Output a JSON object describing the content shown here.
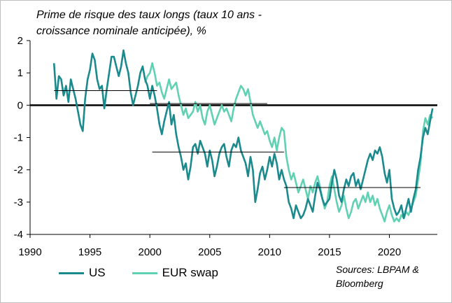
{
  "chart_data": {
    "type": "line",
    "title": "Prime de risque des taux longs (taux 10 ans - croissance nominale anticipée), %",
    "title_lines": [
      "Prime de risque des taux longs (taux 10 ans -",
      "croissance nominale anticipée), %"
    ],
    "xlabel": "",
    "ylabel": "",
    "xlim": [
      1990,
      2024
    ],
    "ylim": [
      -4,
      2
    ],
    "x_ticks": [
      1990,
      1995,
      2000,
      2005,
      2010,
      2015,
      2020
    ],
    "y_ticks": [
      2,
      1,
      0,
      -1,
      -2,
      -3,
      -4
    ],
    "grid": false,
    "legend_position": "bottom-left",
    "series": [
      {
        "name": "US",
        "color": "#1a8a8c",
        "points": [
          [
            1992.0,
            1.3
          ],
          [
            1992.2,
            0.2
          ],
          [
            1992.4,
            0.9
          ],
          [
            1992.6,
            0.8
          ],
          [
            1992.8,
            0.3
          ],
          [
            1993.0,
            0.6
          ],
          [
            1993.2,
            0.1
          ],
          [
            1993.4,
            0.8
          ],
          [
            1993.6,
            0.5
          ],
          [
            1993.8,
            0.2
          ],
          [
            1994.0,
            -0.2
          ],
          [
            1994.2,
            -0.6
          ],
          [
            1994.4,
            -0.8
          ],
          [
            1994.6,
            0.2
          ],
          [
            1994.8,
            0.8
          ],
          [
            1995.0,
            1.1
          ],
          [
            1995.2,
            1.6
          ],
          [
            1995.4,
            1.4
          ],
          [
            1995.6,
            0.8
          ],
          [
            1995.8,
            0.5
          ],
          [
            1996.0,
            0.6
          ],
          [
            1996.2,
            -0.1
          ],
          [
            1996.4,
            0.5
          ],
          [
            1996.6,
            1.0
          ],
          [
            1996.8,
            1.5
          ],
          [
            1997.0,
            1.5
          ],
          [
            1997.2,
            1.2
          ],
          [
            1997.4,
            0.9
          ],
          [
            1997.6,
            1.2
          ],
          [
            1997.8,
            1.7
          ],
          [
            1998.0,
            1.3
          ],
          [
            1998.2,
            1.0
          ],
          [
            1998.4,
            0.4
          ],
          [
            1998.6,
            0.0
          ],
          [
            1998.8,
            0.3
          ],
          [
            1999.0,
            0.6
          ],
          [
            1999.2,
            1.0
          ],
          [
            1999.4,
            1.2
          ],
          [
            1999.6,
            0.8
          ],
          [
            1999.8,
            0.6
          ],
          [
            2000.0,
            0.2
          ],
          [
            2000.2,
            0.6
          ],
          [
            2000.4,
            0.3
          ],
          [
            2000.6,
            -0.1
          ],
          [
            2000.8,
            -0.6
          ],
          [
            2001.0,
            -0.9
          ],
          [
            2001.2,
            -0.5
          ],
          [
            2001.4,
            -0.2
          ],
          [
            2001.6,
            0.1
          ],
          [
            2001.8,
            -0.6
          ],
          [
            2002.0,
            -0.3
          ],
          [
            2002.2,
            -0.9
          ],
          [
            2002.4,
            -1.3
          ],
          [
            2002.6,
            -1.6
          ],
          [
            2002.8,
            -2.0
          ],
          [
            2003.0,
            -1.8
          ],
          [
            2003.2,
            -2.3
          ],
          [
            2003.4,
            -1.9
          ],
          [
            2003.6,
            -1.3
          ],
          [
            2003.8,
            -1.2
          ],
          [
            2004.0,
            -1.5
          ],
          [
            2004.2,
            -1.1
          ],
          [
            2004.4,
            -1.3
          ],
          [
            2004.6,
            -1.5
          ],
          [
            2004.8,
            -1.9
          ],
          [
            2005.0,
            -1.4
          ],
          [
            2005.2,
            -1.7
          ],
          [
            2005.4,
            -2.2
          ],
          [
            2005.6,
            -1.9
          ],
          [
            2005.8,
            -1.5
          ],
          [
            2006.0,
            -1.3
          ],
          [
            2006.2,
            -1.2
          ],
          [
            2006.4,
            -1.6
          ],
          [
            2006.6,
            -1.9
          ],
          [
            2006.8,
            -1.4
          ],
          [
            2007.0,
            -1.2
          ],
          [
            2007.2,
            -1.3
          ],
          [
            2007.4,
            -1.0
          ],
          [
            2007.6,
            -1.4
          ],
          [
            2007.8,
            -1.6
          ],
          [
            2008.0,
            -1.8
          ],
          [
            2008.2,
            -2.2
          ],
          [
            2008.4,
            -1.6
          ],
          [
            2008.6,
            -2.0
          ],
          [
            2008.8,
            -3.0
          ],
          [
            2009.0,
            -2.6
          ],
          [
            2009.2,
            -2.1
          ],
          [
            2009.4,
            -1.9
          ],
          [
            2009.6,
            -2.3
          ],
          [
            2009.8,
            -2.0
          ],
          [
            2010.0,
            -1.6
          ],
          [
            2010.2,
            -1.9
          ],
          [
            2010.4,
            -1.5
          ],
          [
            2010.6,
            -1.8
          ],
          [
            2010.8,
            -2.3
          ],
          [
            2011.0,
            -2.0
          ],
          [
            2011.2,
            -2.3
          ],
          [
            2011.4,
            -2.5
          ],
          [
            2011.6,
            -3.0
          ],
          [
            2011.8,
            -3.2
          ],
          [
            2012.0,
            -3.5
          ],
          [
            2012.2,
            -3.1
          ],
          [
            2012.4,
            -3.3
          ],
          [
            2012.6,
            -3.5
          ],
          [
            2012.8,
            -3.4
          ],
          [
            2013.0,
            -3.2
          ],
          [
            2013.2,
            -2.9
          ],
          [
            2013.4,
            -3.1
          ],
          [
            2013.6,
            -3.3
          ],
          [
            2013.8,
            -2.8
          ],
          [
            2014.0,
            -2.4
          ],
          [
            2014.2,
            -2.6
          ],
          [
            2014.4,
            -2.9
          ],
          [
            2014.6,
            -3.1
          ],
          [
            2014.8,
            -3.0
          ],
          [
            2015.0,
            -2.9
          ],
          [
            2015.2,
            -2.4
          ],
          [
            2015.4,
            -2.0
          ],
          [
            2015.6,
            -2.3
          ],
          [
            2015.8,
            -2.8
          ],
          [
            2016.0,
            -3.0
          ],
          [
            2016.2,
            -2.6
          ],
          [
            2016.4,
            -2.3
          ],
          [
            2016.6,
            -2.5
          ],
          [
            2016.8,
            -2.2
          ],
          [
            2017.0,
            -2.1
          ],
          [
            2017.2,
            -2.5
          ],
          [
            2017.4,
            -2.3
          ],
          [
            2017.6,
            -2.6
          ],
          [
            2017.8,
            -2.3
          ],
          [
            2018.0,
            -2.0
          ],
          [
            2018.2,
            -1.7
          ],
          [
            2018.4,
            -1.5
          ],
          [
            2018.6,
            -1.7
          ],
          [
            2018.8,
            -1.4
          ],
          [
            2019.0,
            -1.5
          ],
          [
            2019.2,
            -1.3
          ],
          [
            2019.4,
            -1.6
          ],
          [
            2019.6,
            -2.1
          ],
          [
            2019.8,
            -2.4
          ],
          [
            2020.0,
            -2.0
          ],
          [
            2020.2,
            -2.9
          ],
          [
            2020.4,
            -3.2
          ],
          [
            2020.6,
            -3.4
          ],
          [
            2020.8,
            -3.3
          ],
          [
            2021.0,
            -3.1
          ],
          [
            2021.2,
            -3.5
          ],
          [
            2021.4,
            -3.2
          ],
          [
            2021.6,
            -2.9
          ],
          [
            2021.8,
            -3.3
          ],
          [
            2022.0,
            -2.9
          ],
          [
            2022.2,
            -2.6
          ],
          [
            2022.4,
            -2.0
          ],
          [
            2022.6,
            -1.6
          ],
          [
            2022.8,
            -1.0
          ],
          [
            2023.0,
            -0.7
          ],
          [
            2023.2,
            -0.9
          ],
          [
            2023.4,
            -0.5
          ],
          [
            2023.6,
            -0.1
          ]
        ]
      },
      {
        "name": "EUR swap",
        "color": "#61d1b3",
        "points": [
          [
            1999.6,
            0.7
          ],
          [
            1999.8,
            0.9
          ],
          [
            2000.0,
            1.0
          ],
          [
            2000.2,
            1.3
          ],
          [
            2000.4,
            1.0
          ],
          [
            2000.6,
            0.6
          ],
          [
            2000.8,
            0.7
          ],
          [
            2001.0,
            0.4
          ],
          [
            2001.2,
            0.2
          ],
          [
            2001.4,
            0.5
          ],
          [
            2001.6,
            0.8
          ],
          [
            2001.8,
            0.5
          ],
          [
            2002.0,
            0.6
          ],
          [
            2002.2,
            0.7
          ],
          [
            2002.4,
            0.3
          ],
          [
            2002.6,
            0.0
          ],
          [
            2002.8,
            -0.3
          ],
          [
            2003.0,
            -0.1
          ],
          [
            2003.2,
            -0.4
          ],
          [
            2003.4,
            -0.3
          ],
          [
            2003.6,
            -0.2
          ],
          [
            2003.8,
            0.1
          ],
          [
            2004.0,
            -0.2
          ],
          [
            2004.2,
            0.0
          ],
          [
            2004.4,
            -0.4
          ],
          [
            2004.6,
            -0.6
          ],
          [
            2004.8,
            -0.2
          ],
          [
            2005.0,
            0.0
          ],
          [
            2005.2,
            -0.3
          ],
          [
            2005.4,
            -0.6
          ],
          [
            2005.6,
            -0.4
          ],
          [
            2005.8,
            -0.2
          ],
          [
            2006.0,
            0.0
          ],
          [
            2006.2,
            -0.2
          ],
          [
            2006.4,
            -0.1
          ],
          [
            2006.6,
            -0.3
          ],
          [
            2006.8,
            -0.5
          ],
          [
            2007.0,
            -0.1
          ],
          [
            2007.2,
            0.2
          ],
          [
            2007.4,
            0.4
          ],
          [
            2007.6,
            0.6
          ],
          [
            2007.8,
            0.5
          ],
          [
            2008.0,
            0.3
          ],
          [
            2008.2,
            0.5
          ],
          [
            2008.4,
            0.1
          ],
          [
            2008.6,
            -0.3
          ],
          [
            2008.8,
            -0.5
          ],
          [
            2009.0,
            -0.7
          ],
          [
            2009.2,
            -0.5
          ],
          [
            2009.4,
            -0.7
          ],
          [
            2009.6,
            -0.9
          ],
          [
            2009.8,
            -0.8
          ],
          [
            2010.0,
            -1.1
          ],
          [
            2010.2,
            -1.3
          ],
          [
            2010.4,
            -1.0
          ],
          [
            2010.6,
            -1.4
          ],
          [
            2010.8,
            -1.0
          ],
          [
            2011.0,
            -0.7
          ],
          [
            2011.2,
            -0.8
          ],
          [
            2011.4,
            -1.6
          ],
          [
            2011.6,
            -2.0
          ],
          [
            2011.8,
            -2.3
          ],
          [
            2012.0,
            -2.1
          ],
          [
            2012.2,
            -2.4
          ],
          [
            2012.4,
            -2.7
          ],
          [
            2012.6,
            -2.5
          ],
          [
            2012.8,
            -2.3
          ],
          [
            2013.0,
            -2.6
          ],
          [
            2013.2,
            -2.9
          ],
          [
            2013.4,
            -2.5
          ],
          [
            2013.6,
            -2.7
          ],
          [
            2013.8,
            -2.4
          ],
          [
            2014.0,
            -2.2
          ],
          [
            2014.2,
            -2.5
          ],
          [
            2014.4,
            -2.9
          ],
          [
            2014.6,
            -3.2
          ],
          [
            2014.8,
            -3.0
          ],
          [
            2015.0,
            -2.5
          ],
          [
            2015.2,
            -2.2
          ],
          [
            2015.4,
            -2.6
          ],
          [
            2015.6,
            -3.0
          ],
          [
            2015.8,
            -3.3
          ],
          [
            2016.0,
            -3.1
          ],
          [
            2016.2,
            -2.8
          ],
          [
            2016.4,
            -3.2
          ],
          [
            2016.6,
            -3.5
          ],
          [
            2016.8,
            -3.3
          ],
          [
            2017.0,
            -3.0
          ],
          [
            2017.2,
            -2.9
          ],
          [
            2017.4,
            -3.2
          ],
          [
            2017.6,
            -3.0
          ],
          [
            2017.8,
            -2.8
          ],
          [
            2018.0,
            -3.0
          ],
          [
            2018.2,
            -2.7
          ],
          [
            2018.4,
            -3.0
          ],
          [
            2018.6,
            -2.8
          ],
          [
            2018.8,
            -3.1
          ],
          [
            2019.0,
            -2.9
          ],
          [
            2019.2,
            -3.2
          ],
          [
            2019.4,
            -3.4
          ],
          [
            2019.6,
            -3.6
          ],
          [
            2019.8,
            -3.3
          ],
          [
            2020.0,
            -3.1
          ],
          [
            2020.2,
            -3.4
          ],
          [
            2020.4,
            -3.6
          ],
          [
            2020.6,
            -3.5
          ],
          [
            2020.8,
            -3.6
          ],
          [
            2021.0,
            -3.4
          ],
          [
            2021.2,
            -3.5
          ],
          [
            2021.4,
            -3.3
          ],
          [
            2021.6,
            -3.4
          ],
          [
            2021.8,
            -3.2
          ],
          [
            2022.0,
            -3.0
          ],
          [
            2022.2,
            -2.8
          ],
          [
            2022.4,
            -2.3
          ],
          [
            2022.6,
            -1.8
          ],
          [
            2022.8,
            -0.8
          ],
          [
            2023.0,
            -0.4
          ],
          [
            2023.2,
            -0.6
          ],
          [
            2023.4,
            -0.3
          ],
          [
            2023.6,
            -0.4
          ]
        ]
      }
    ],
    "averages": [
      {
        "from": 1992.0,
        "to": 2000.6,
        "value": 0.45
      },
      {
        "from": 2000.0,
        "to": 2009.8,
        "value": 0.05
      },
      {
        "from": 2000.2,
        "to": 2011.2,
        "value": -1.45
      },
      {
        "from": 2011.2,
        "to": 2022.6,
        "value": -2.55
      }
    ],
    "source_lines": [
      "Sources: LBPAM &",
      "Bloomberg"
    ]
  }
}
